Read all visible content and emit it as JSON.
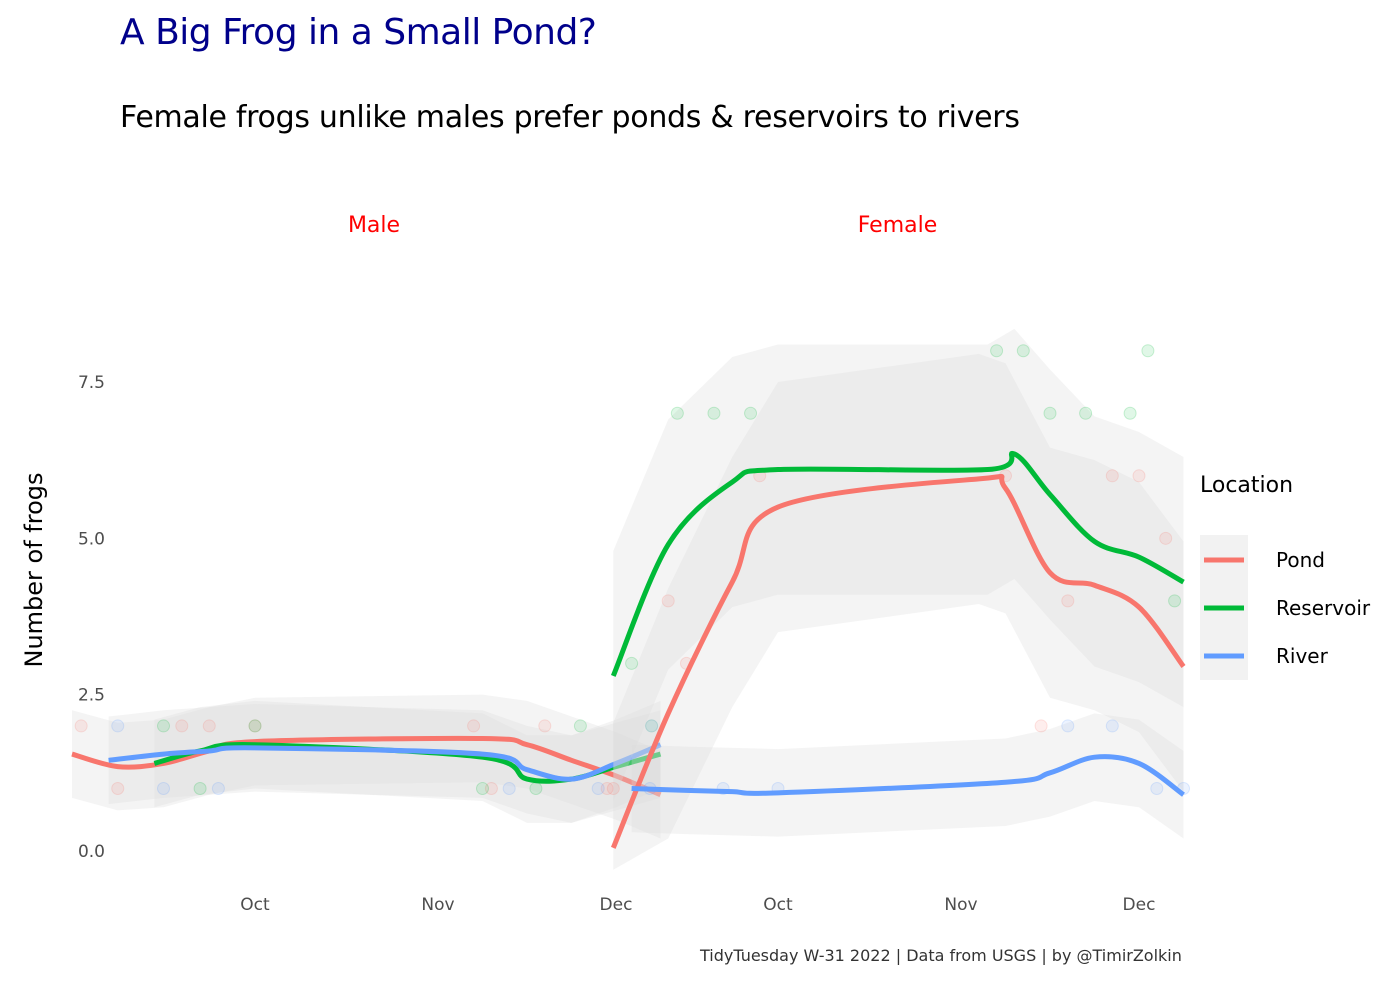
{
  "title": "A Big Frog in a Small Pond?",
  "subtitle": "Female frogs unlike males prefer ponds & reservoirs to rivers",
  "caption": "TidyTuesday W-31 2022 | Data from USGS | by @TimirZolkin",
  "colors": {
    "title": "#00008b",
    "strip": "#ff0000",
    "Pond": "#F8766D",
    "Reservoir": "#00BA38",
    "River": "#619CFF"
  },
  "chart_data": {
    "type": "line",
    "ylabel": "Number of frogs",
    "xlabel": "",
    "ylim": [
      0,
      8.5
    ],
    "yticks": [
      "0.0",
      "2.5",
      "5.0",
      "7.5"
    ],
    "ytick_values": [
      0,
      2.5,
      5,
      7.5
    ],
    "xticks": [
      "Oct",
      "Nov",
      "Dec"
    ],
    "legend": {
      "title": "Location",
      "placement": "right",
      "entries": [
        "Pond",
        "Reservoir",
        "River"
      ]
    },
    "facets": [
      {
        "name": "Male",
        "series": [
          {
            "name": "Pond",
            "points": [
              [
                0,
                1.55
              ],
              [
                0.25,
                1.35
              ],
              [
                0.5,
                1.4
              ],
              [
                0.75,
                1.6
              ],
              [
                1.0,
                1.75
              ],
              [
                1.25,
                1.8
              ],
              [
                1.5,
                1.7
              ],
              [
                1.75,
                1.45
              ],
              [
                2.0,
                1.2
              ],
              [
                2.25,
                0.9
              ]
            ],
            "raw": [
              [
                0.05,
                2
              ],
              [
                0.25,
                1
              ],
              [
                0.6,
                2
              ],
              [
                0.75,
                2
              ],
              [
                1.0,
                2
              ],
              [
                1.2,
                2
              ],
              [
                1.3,
                1
              ],
              [
                1.6,
                2
              ],
              [
                1.95,
                1
              ]
            ]
          },
          {
            "name": "Reservoir",
            "points": [
              [
                0.45,
                1.4
              ],
              [
                0.7,
                1.6
              ],
              [
                1.0,
                1.7
              ],
              [
                1.25,
                1.5
              ],
              [
                1.5,
                1.15
              ],
              [
                1.75,
                1.15
              ],
              [
                2.0,
                1.35
              ],
              [
                2.25,
                1.55
              ]
            ],
            "raw": [
              [
                0.5,
                2
              ],
              [
                0.7,
                1
              ],
              [
                1.0,
                2
              ],
              [
                1.25,
                1
              ],
              [
                1.55,
                1
              ],
              [
                1.8,
                2
              ],
              [
                2.2,
                2
              ]
            ]
          },
          {
            "name": "River",
            "points": [
              [
                0.2,
                1.45
              ],
              [
                0.5,
                1.55
              ],
              [
                0.75,
                1.6
              ],
              [
                1.0,
                1.65
              ],
              [
                1.25,
                1.55
              ],
              [
                1.5,
                1.3
              ],
              [
                1.75,
                1.15
              ],
              [
                2.0,
                1.4
              ],
              [
                2.25,
                1.7
              ]
            ],
            "raw": [
              [
                0.25,
                2
              ],
              [
                0.5,
                1
              ],
              [
                0.8,
                1
              ],
              [
                1.4,
                1
              ],
              [
                1.9,
                1
              ],
              [
                2.2,
                2
              ]
            ]
          }
        ]
      },
      {
        "name": "Female",
        "series": [
          {
            "name": "Pond",
            "points": [
              [
                0.1,
                0.05
              ],
              [
                0.4,
                2.2
              ],
              [
                0.75,
                4.3
              ],
              [
                1.0,
                5.5
              ],
              [
                1.1,
                5.95
              ],
              [
                1.25,
                5.8
              ],
              [
                1.5,
                4.45
              ],
              [
                1.75,
                4.25
              ],
              [
                2.0,
                3.9
              ],
              [
                2.25,
                2.95
              ]
            ],
            "raw": [
              [
                0.1,
                1
              ],
              [
                0.4,
                4
              ],
              [
                0.5,
                3
              ],
              [
                0.9,
                6
              ],
              [
                1.25,
                6
              ],
              [
                1.45,
                2
              ],
              [
                1.6,
                4
              ],
              [
                1.85,
                6
              ],
              [
                2.0,
                6
              ],
              [
                2.15,
                5
              ]
            ]
          },
          {
            "name": "Reservoir",
            "points": [
              [
                0.1,
                2.8
              ],
              [
                0.4,
                4.9
              ],
              [
                0.75,
                5.9
              ],
              [
                1.0,
                6.1
              ],
              [
                1.15,
                6.1
              ],
              [
                1.3,
                6.35
              ],
              [
                1.5,
                5.7
              ],
              [
                1.75,
                4.95
              ],
              [
                2.0,
                4.7
              ],
              [
                2.25,
                4.3
              ]
            ],
            "raw": [
              [
                0.2,
                3
              ],
              [
                0.45,
                7
              ],
              [
                0.65,
                7
              ],
              [
                0.85,
                7
              ],
              [
                1.2,
                8
              ],
              [
                1.35,
                8
              ],
              [
                1.5,
                7
              ],
              [
                1.7,
                7
              ],
              [
                1.95,
                7
              ],
              [
                2.05,
                8
              ],
              [
                2.2,
                4
              ]
            ]
          },
          {
            "name": "River",
            "points": [
              [
                0.2,
                1.0
              ],
              [
                0.5,
                0.97
              ],
              [
                0.75,
                0.95
              ],
              [
                1.0,
                0.93
              ],
              [
                1.25,
                1.1
              ],
              [
                1.5,
                1.25
              ],
              [
                1.75,
                1.5
              ],
              [
                2.0,
                1.4
              ],
              [
                2.25,
                0.9
              ]
            ],
            "raw": [
              [
                0.3,
                1
              ],
              [
                0.7,
                1
              ],
              [
                1.0,
                1
              ],
              [
                1.6,
                2
              ],
              [
                1.85,
                2
              ],
              [
                2.1,
                1
              ],
              [
                2.25,
                1
              ]
            ]
          }
        ]
      }
    ]
  }
}
